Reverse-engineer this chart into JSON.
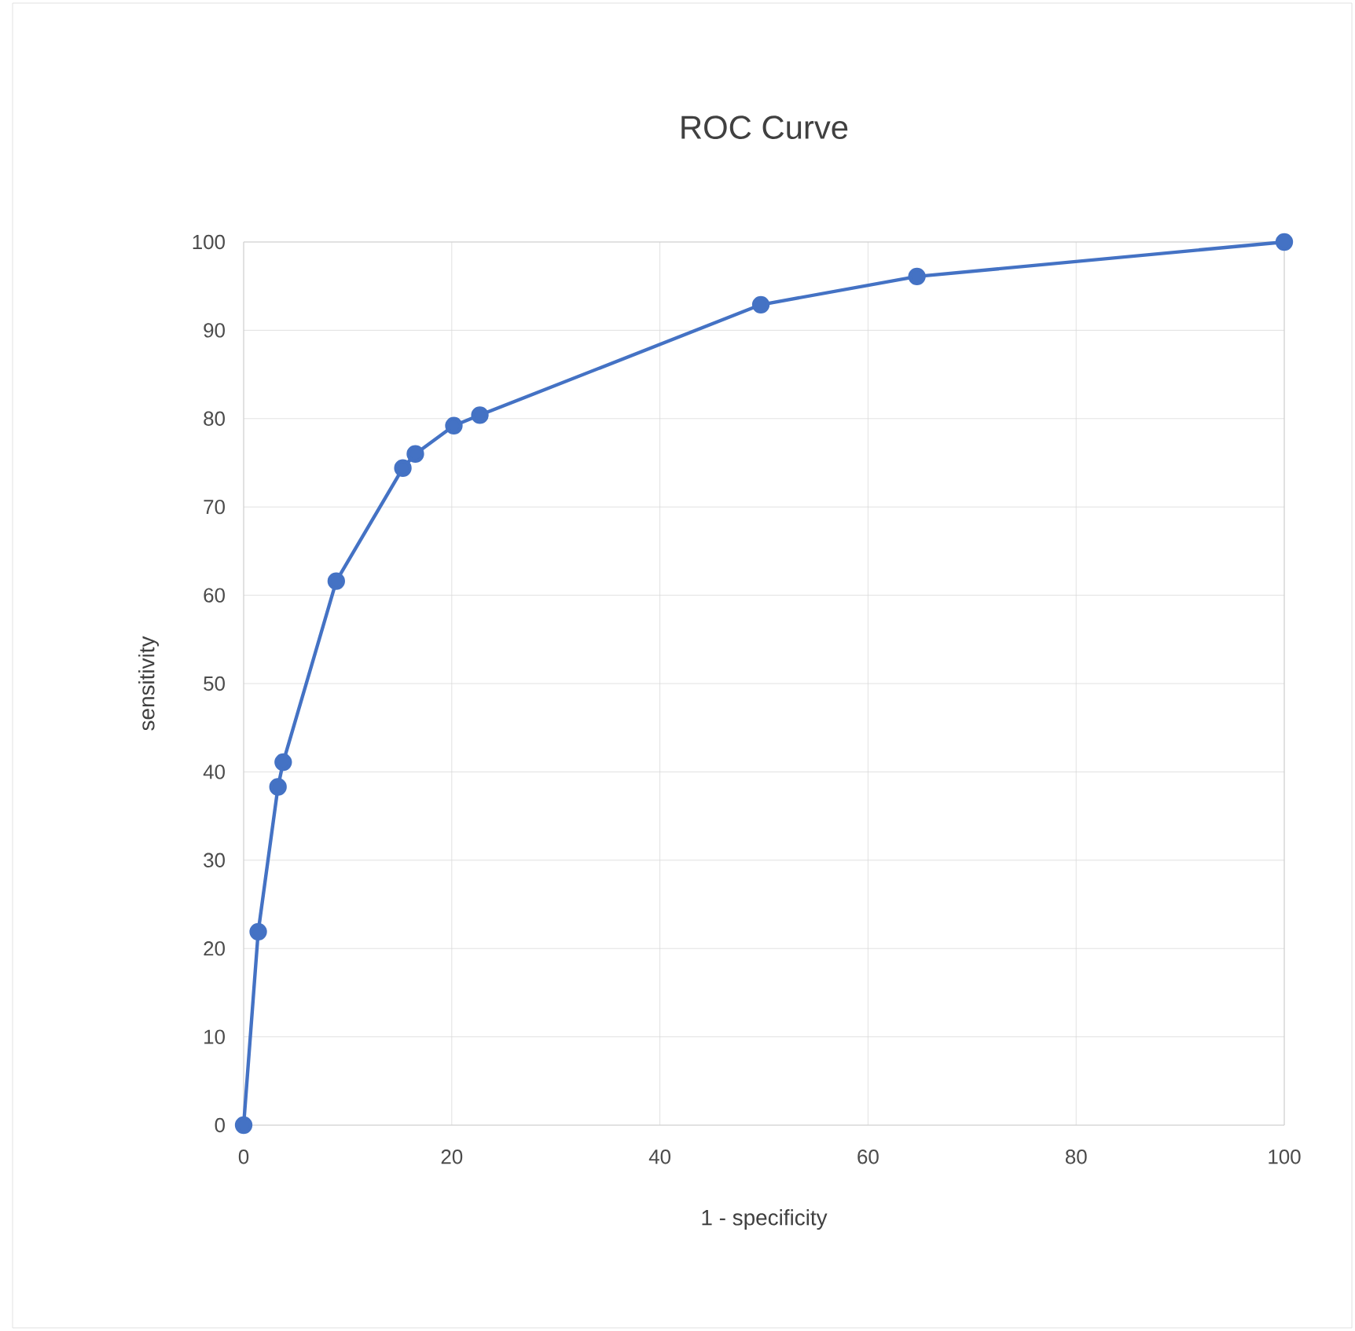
{
  "chart_data": {
    "type": "line",
    "title": "ROC Curve",
    "xlabel": "1 - specificity",
    "ylabel": "sensitivity",
    "series": [
      {
        "color": "#4472c4",
        "x": [
          0,
          1.4,
          3.3,
          3.8,
          8.9,
          15.3,
          16.5,
          20.2,
          22.7,
          49.7,
          64.7,
          100
        ],
        "values": [
          0,
          21.9,
          38.3,
          41.1,
          61.6,
          74.4,
          76.0,
          79.2,
          80.4,
          92.9,
          96.1,
          100
        ]
      }
    ],
    "xlim": [
      0,
      100
    ],
    "xticks": [
      0,
      20,
      40,
      60,
      80,
      100
    ],
    "ylim": [
      0,
      100
    ],
    "yticks": [
      0,
      10,
      20,
      30,
      40,
      50,
      60,
      70,
      80,
      90,
      100
    ],
    "grid": true,
    "marker": "circle",
    "line_style": "solid"
  }
}
